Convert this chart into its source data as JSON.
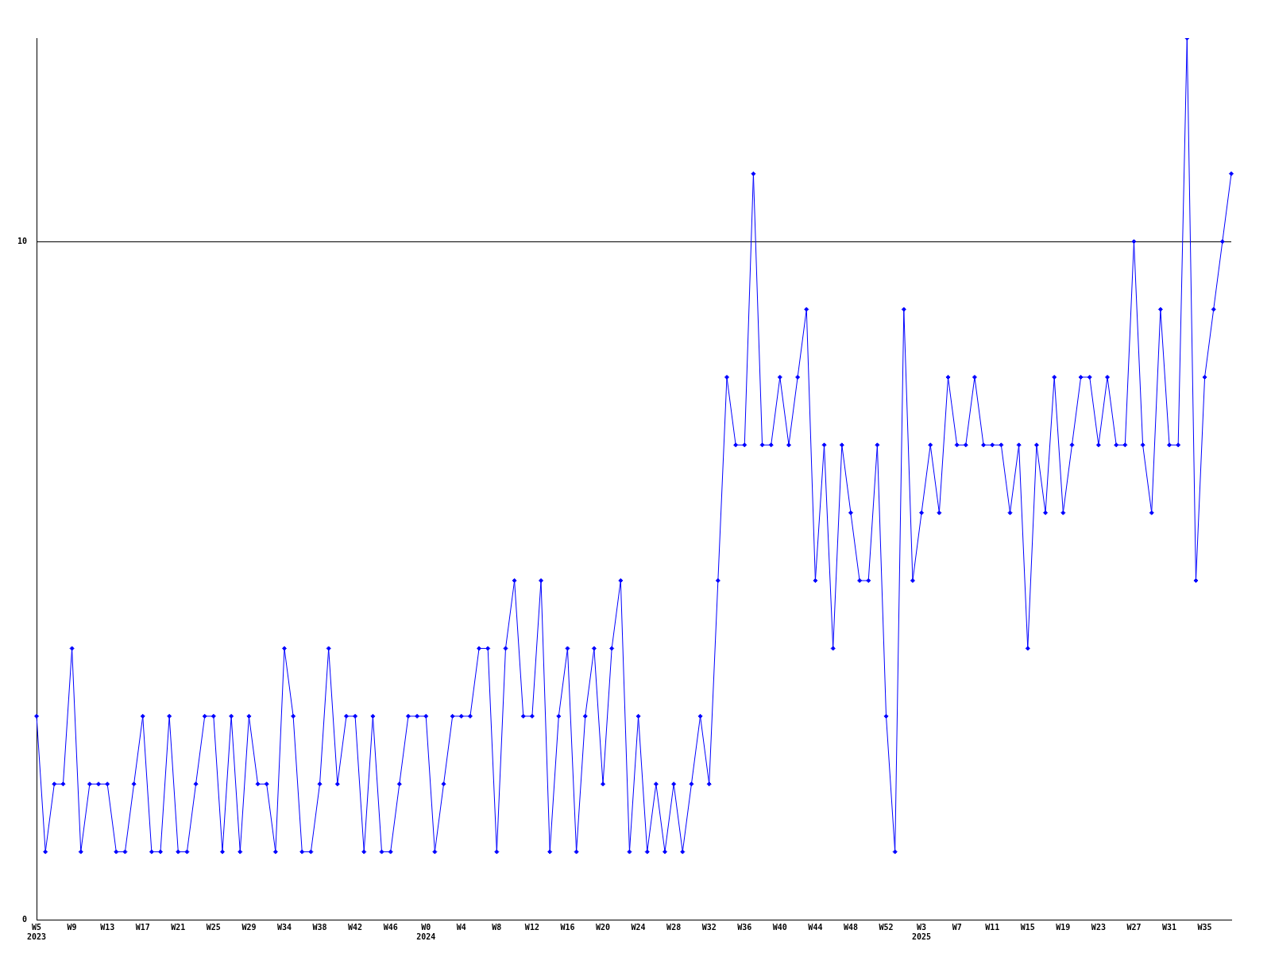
{
  "chart_data": {
    "type": "line",
    "categories": [
      "W5\n2023",
      null,
      null,
      null,
      "W9",
      null,
      null,
      null,
      "W13",
      null,
      null,
      null,
      "W17",
      null,
      null,
      null,
      "W21",
      null,
      null,
      null,
      "W25",
      null,
      null,
      null,
      "W29",
      null,
      null,
      null,
      "W34",
      null,
      null,
      null,
      "W38",
      null,
      null,
      null,
      "W42",
      null,
      null,
      null,
      "W46",
      null,
      null,
      null,
      "W0\n2024",
      null,
      null,
      null,
      "W4",
      null,
      null,
      null,
      "W8",
      null,
      null,
      null,
      "W12",
      null,
      null,
      null,
      "W16",
      null,
      null,
      null,
      "W20",
      null,
      null,
      null,
      "W24",
      null,
      null,
      null,
      "W28",
      null,
      null,
      null,
      "W32",
      null,
      null,
      null,
      "W36",
      null,
      null,
      null,
      "W40",
      null,
      null,
      null,
      "W44",
      null,
      null,
      null,
      "W48",
      null,
      null,
      null,
      "W52",
      null,
      null,
      null,
      "W3\n2025",
      null,
      null,
      null,
      "W7",
      null,
      null,
      null,
      "W11",
      null,
      null,
      null,
      "W15",
      null,
      null,
      null,
      "W19",
      null,
      null,
      null,
      "W23",
      null,
      null,
      null,
      "W27",
      null,
      null,
      null,
      "W31",
      null,
      null,
      null,
      "W35",
      null,
      null,
      null
    ],
    "series": [
      {
        "color": "#0000ff",
        "values": [
          3,
          1,
          2,
          2,
          4,
          1,
          2,
          2,
          2,
          1,
          1,
          2,
          3,
          1,
          1,
          3,
          1,
          1,
          2,
          3,
          3,
          1,
          3,
          1,
          3,
          2,
          2,
          1,
          4,
          3,
          1,
          1,
          2,
          4,
          2,
          3,
          3,
          1,
          3,
          1,
          1,
          2,
          3,
          3,
          3,
          1,
          2,
          3,
          3,
          3,
          4,
          4,
          1,
          4,
          5,
          3,
          3,
          5,
          1,
          3,
          4,
          1,
          3,
          4,
          2,
          4,
          5,
          1,
          3,
          1,
          2,
          1,
          2,
          1,
          2,
          3,
          2,
          5,
          8,
          7,
          7,
          11,
          7,
          7,
          8,
          7,
          8,
          9,
          5,
          7,
          4,
          7,
          6,
          5,
          5,
          7,
          3,
          1,
          9,
          5,
          6,
          7,
          6,
          8,
          7,
          7,
          8,
          7,
          7,
          7,
          6,
          7,
          4,
          7,
          6,
          8,
          6,
          7,
          8,
          8,
          7,
          8,
          7,
          7,
          10,
          7,
          6,
          9,
          7,
          7,
          13,
          5,
          8,
          9,
          10,
          11
        ]
      }
    ],
    "ylim": [
      0,
      13
    ],
    "yticks": [
      0,
      10
    ],
    "grid": "y",
    "marker": "diamond",
    "line_style": "solid"
  }
}
